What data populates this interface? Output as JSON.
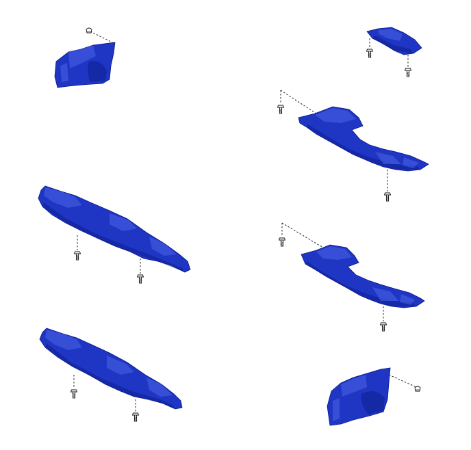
{
  "colors": {
    "background": "#ffffff",
    "part_fill": "#1f35c4",
    "part_highlight": "#4a63e8",
    "part_shadow": "#0c1e8e",
    "leader_line": "#222222",
    "fastener": "#111111"
  },
  "parts": [
    {
      "id": "front-left-fender-liner-section",
      "fastener_count": 1
    },
    {
      "id": "front-bumper-lower-cover-a",
      "fastener_count": 2
    },
    {
      "id": "front-bumper-lower-cover-b",
      "fastener_count": 2
    },
    {
      "id": "engine-under-cover-front-plate",
      "fastener_count": 2
    },
    {
      "id": "engine-under-cover-rh",
      "fastener_count": 2
    },
    {
      "id": "engine-under-cover-lh",
      "fastener_count": 2
    },
    {
      "id": "front-right-fender-liner-section",
      "fastener_count": 1
    }
  ]
}
